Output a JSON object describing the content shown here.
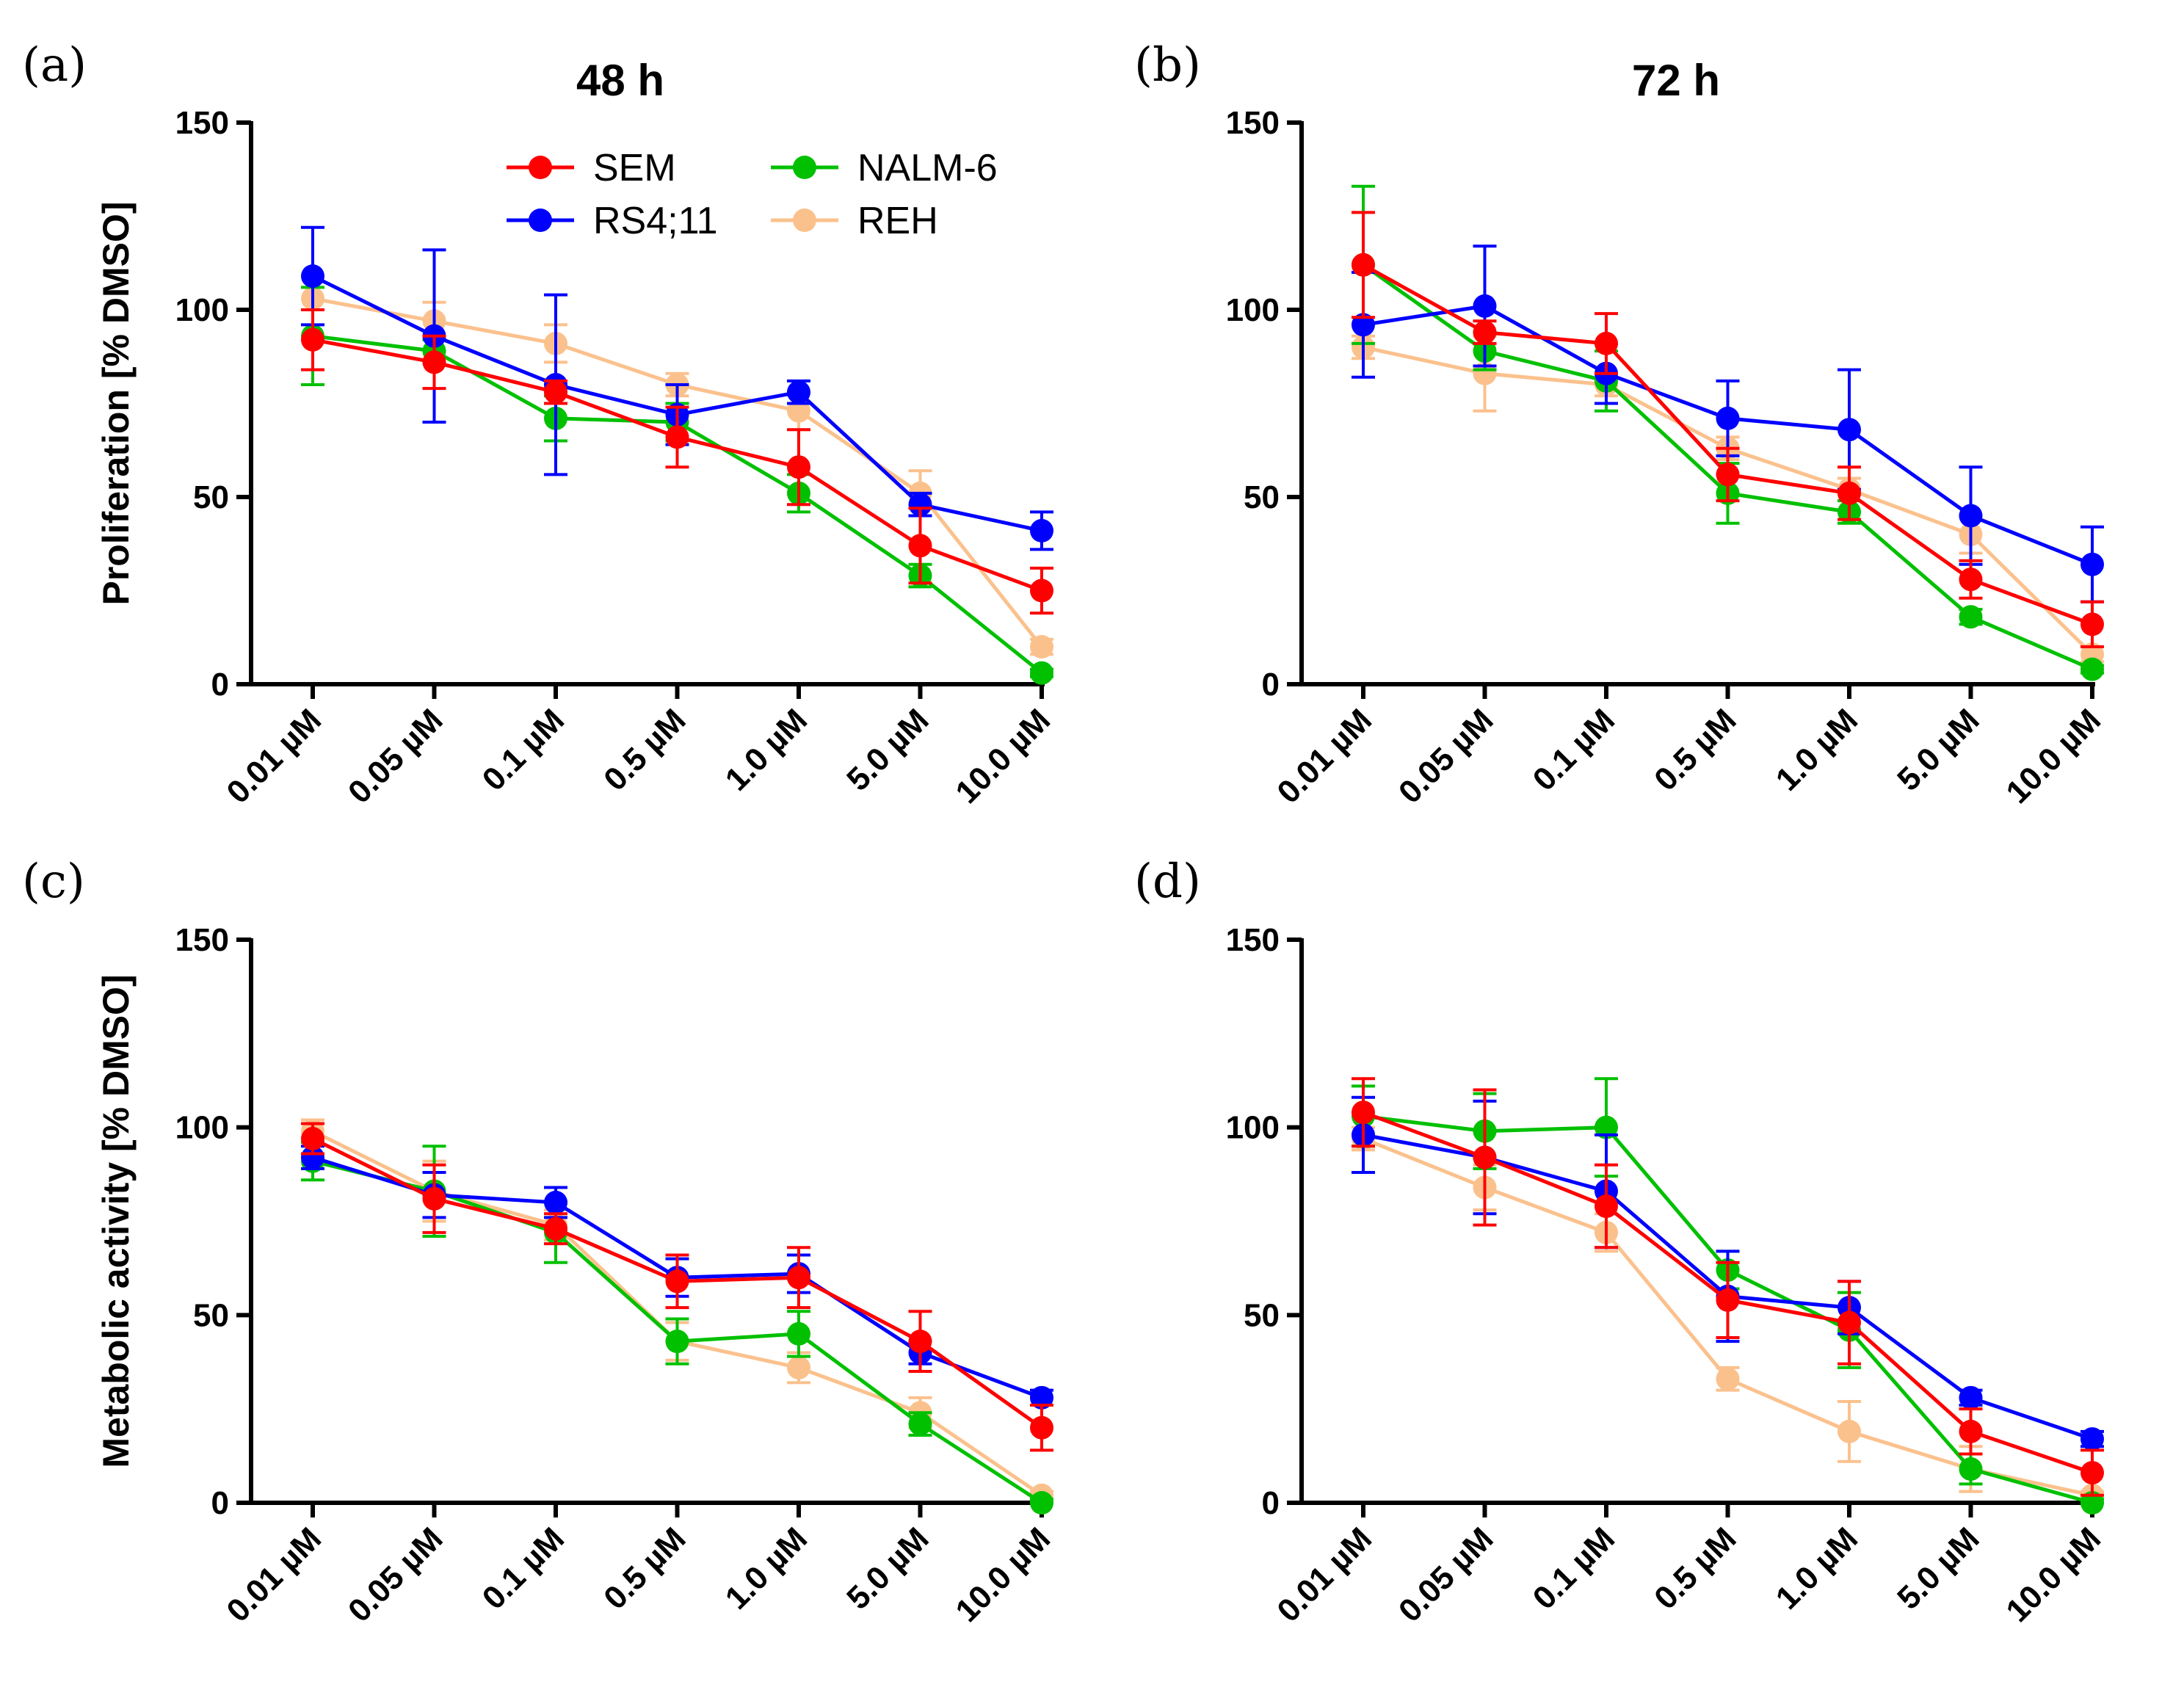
{
  "chart_data": [
    {
      "panel": "(a)",
      "type": "line",
      "title": "48 h",
      "ylabel": "Proliferation [% DMSO]",
      "xlabel": "",
      "ylim": [
        0,
        150
      ],
      "yticks": [
        0,
        50,
        100,
        150
      ],
      "categories": [
        "0.01 µM",
        "0.05 µM",
        "0.1 µM",
        "0.5 µM",
        "1.0 µM",
        "5.0 µM",
        "10.0 µM"
      ],
      "legend": [
        "SEM",
        "RS4;11",
        "NALM-6",
        "REH"
      ],
      "series": [
        {
          "name": "REH",
          "color": "#FBC18D",
          "values": [
            103,
            97,
            91,
            80,
            73,
            51,
            10
          ],
          "errors": [
            3,
            5,
            5,
            3,
            5,
            6,
            2
          ]
        },
        {
          "name": "NALM-6",
          "color": "#00C000",
          "values": [
            93,
            89,
            71,
            70,
            51,
            29,
            3
          ],
          "errors": [
            13,
            3,
            6,
            5,
            5,
            3,
            1
          ]
        },
        {
          "name": "RS4;11",
          "color": "#0000FF",
          "values": [
            109,
            93,
            80,
            72,
            78,
            48,
            41
          ],
          "errors": [
            13,
            23,
            24,
            8,
            3,
            3,
            5
          ]
        },
        {
          "name": "SEM",
          "color": "#FF0000",
          "values": [
            92,
            86,
            78,
            66,
            58,
            37,
            25
          ],
          "errors": [
            8,
            7,
            3,
            8,
            10,
            10,
            6
          ]
        }
      ]
    },
    {
      "panel": "(b)",
      "type": "line",
      "title": "72 h",
      "ylabel": "",
      "xlabel": "",
      "ylim": [
        0,
        150
      ],
      "yticks": [
        0,
        50,
        100,
        150
      ],
      "categories": [
        "0.01 µM",
        "0.05 µM",
        "0.1 µM",
        "0.5 µM",
        "1.0 µM",
        "5.0 µM",
        "10.0 µM"
      ],
      "legend": [],
      "series": [
        {
          "name": "REH",
          "color": "#FBC18D",
          "values": [
            90,
            83,
            80,
            63,
            52,
            40,
            8
          ],
          "errors": [
            3,
            10,
            3,
            3,
            3,
            5,
            2
          ]
        },
        {
          "name": "NALM-6",
          "color": "#00C000",
          "values": [
            112,
            89,
            81,
            51,
            46,
            18,
            4
          ],
          "errors": [
            21,
            5,
            8,
            8,
            3,
            2,
            1
          ]
        },
        {
          "name": "RS4;11",
          "color": "#0000FF",
          "values": [
            96,
            101,
            83,
            71,
            68,
            45,
            32
          ],
          "errors": [
            14,
            16,
            8,
            10,
            16,
            13,
            10
          ]
        },
        {
          "name": "SEM",
          "color": "#FF0000",
          "values": [
            112,
            94,
            91,
            56,
            51,
            28,
            16
          ],
          "errors": [
            14,
            3,
            8,
            7,
            7,
            5,
            6
          ]
        }
      ]
    },
    {
      "panel": "(c)",
      "type": "line",
      "title": "",
      "ylabel": "Metabolic activity [% DMSO]",
      "xlabel": "",
      "ylim": [
        0,
        150
      ],
      "yticks": [
        0,
        50,
        100,
        150
      ],
      "categories": [
        "0.01 µM",
        "0.05 µM",
        "0.1 µM",
        "0.5 µM",
        "1.0 µM",
        "5.0 µM",
        "10.0 µM"
      ],
      "legend": [],
      "series": [
        {
          "name": "REH",
          "color": "#FBC18D",
          "values": [
            99,
            83,
            74,
            43,
            36,
            24,
            2
          ],
          "errors": [
            3,
            8,
            4,
            5,
            4,
            4,
            1
          ]
        },
        {
          "name": "NALM-6",
          "color": "#00C000",
          "values": [
            91,
            83,
            72,
            43,
            45,
            21,
            0
          ],
          "errors": [
            5,
            12,
            8,
            6,
            6,
            3,
            1
          ]
        },
        {
          "name": "RS4;11",
          "color": "#0000FF",
          "values": [
            92,
            82,
            80,
            60,
            61,
            40,
            28
          ],
          "errors": [
            3,
            6,
            4,
            5,
            5,
            3,
            2
          ]
        },
        {
          "name": "SEM",
          "color": "#FF0000",
          "values": [
            97,
            81,
            73,
            59,
            60,
            43,
            20
          ],
          "errors": [
            4,
            9,
            4,
            7,
            8,
            8,
            6
          ]
        }
      ]
    },
    {
      "panel": "(d)",
      "type": "line",
      "title": "",
      "ylabel": "",
      "xlabel": "",
      "ylim": [
        0,
        150
      ],
      "yticks": [
        0,
        50,
        100,
        150
      ],
      "categories": [
        "0.01 µM",
        "0.05 µM",
        "0.1 µM",
        "0.5 µM",
        "1.0 µM",
        "5.0 µM",
        "10.0 µM"
      ],
      "legend": [],
      "series": [
        {
          "name": "REH",
          "color": "#FBC18D",
          "values": [
            97,
            84,
            72,
            33,
            19,
            9,
            2
          ],
          "errors": [
            3,
            6,
            5,
            3,
            8,
            6,
            1
          ]
        },
        {
          "name": "NALM-6",
          "color": "#00C000",
          "values": [
            103,
            99,
            100,
            62,
            46,
            9,
            0
          ],
          "errors": [
            8,
            10,
            13,
            5,
            10,
            4,
            1
          ]
        },
        {
          "name": "RS4;11",
          "color": "#0000FF",
          "values": [
            98,
            92,
            83,
            55,
            52,
            28,
            17
          ],
          "errors": [
            10,
            15,
            15,
            12,
            7,
            2,
            2
          ]
        },
        {
          "name": "SEM",
          "color": "#FF0000",
          "values": [
            104,
            92,
            79,
            54,
            48,
            19,
            8
          ],
          "errors": [
            9,
            18,
            11,
            10,
            11,
            6,
            6
          ]
        }
      ]
    }
  ]
}
